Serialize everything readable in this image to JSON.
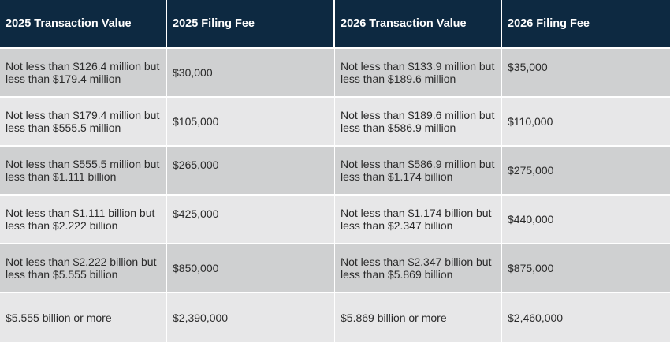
{
  "headers": [
    "2025 Transaction Value",
    "2025 Filing Fee",
    "2026 Transaction Value",
    "2026 Filing Fee"
  ],
  "rows": [
    {
      "v2025": "Not less than $126.4 million but less than $179.4 million",
      "f2025": "$30,000",
      "v2026": "Not less than $133.9 million but less than $189.6 million",
      "f2026": "$35,000"
    },
    {
      "v2025": "Not less than $179.4 million but less than $555.5 million",
      "f2025": "$105,000",
      "v2026": "Not less than $189.6 million but less than $586.9 million",
      "f2026": "$110,000"
    },
    {
      "v2025": "Not less than $555.5 million but less than $1.111 billion",
      "f2025": "$265,000",
      "v2026": "Not less than $586.9 million but less than $1.174 billion",
      "f2026": "$275,000"
    },
    {
      "v2025": "Not less than $1.111 billion but less than $2.222 billion",
      "f2025": "$425,000",
      "v2026": "Not less than $1.174 billion but less than $2.347 billion",
      "f2026": "$440,000"
    },
    {
      "v2025": "Not less than $2.222 billion but less than $5.555 billion",
      "f2025": "$850,000",
      "v2026": "Not less than $2.347 billion but less than $5.869 billion",
      "f2026": "$875,000"
    },
    {
      "v2025": "$5.555 billion or more",
      "f2025": "$2,390,000",
      "v2026": "$5.869 billion or more",
      "f2026": "$2,460,000"
    }
  ],
  "colors": {
    "header_bg": "#0d2941",
    "row_dark": "#cfd0d1",
    "row_light": "#e7e7e8"
  }
}
